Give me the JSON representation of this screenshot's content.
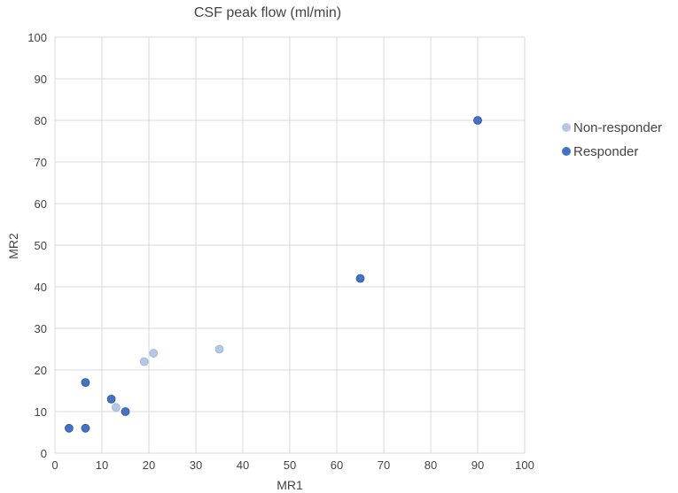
{
  "chart_data": {
    "type": "scatter",
    "title": "CSF peak flow (ml/min)",
    "xlabel": "MR1",
    "ylabel": "MR2",
    "xlim": [
      0,
      100
    ],
    "ylim": [
      0,
      100
    ],
    "xticks": [
      0,
      10,
      20,
      30,
      40,
      50,
      60,
      70,
      80,
      90,
      100
    ],
    "yticks": [
      0,
      10,
      20,
      30,
      40,
      50,
      60,
      70,
      80,
      90,
      100
    ],
    "grid": true,
    "legend_position": "right",
    "series": [
      {
        "name": "Non-responder",
        "color": "#b4c7e7",
        "points": [
          {
            "x": 13,
            "y": 11
          },
          {
            "x": 19,
            "y": 22
          },
          {
            "x": 21,
            "y": 24
          },
          {
            "x": 35,
            "y": 25
          }
        ]
      },
      {
        "name": "Responder",
        "color": "#4472c4",
        "points": [
          {
            "x": 3,
            "y": 6
          },
          {
            "x": 6.5,
            "y": 6
          },
          {
            "x": 6.5,
            "y": 17
          },
          {
            "x": 12,
            "y": 13
          },
          {
            "x": 15,
            "y": 10
          },
          {
            "x": 65,
            "y": 42
          },
          {
            "x": 90,
            "y": 80
          }
        ]
      }
    ]
  }
}
